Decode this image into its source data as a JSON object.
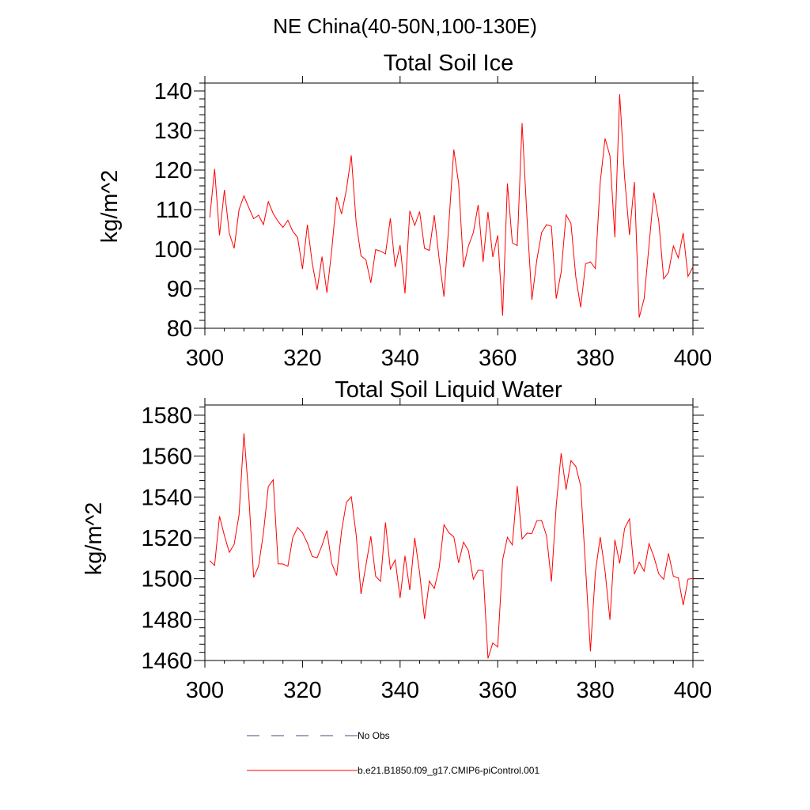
{
  "figure": {
    "title": "NE China(40-50N,100-130E)"
  },
  "chart_data": [
    {
      "type": "line",
      "title": "Total Soil Ice",
      "xlabel": "",
      "ylabel": "kg/m^2",
      "xlim": [
        300,
        400
      ],
      "ylim": [
        80,
        142
      ],
      "xticks": [
        300,
        320,
        340,
        360,
        380,
        400
      ],
      "yticks": [
        80,
        90,
        100,
        110,
        120,
        130,
        140
      ],
      "x_start": 301,
      "series": [
        {
          "name": "b.e21.B1850.f09_g17.CMIP6-piControl.001",
          "color": "#ff0000",
          "values": [
            108,
            120.3,
            103.5,
            115,
            104,
            100.2,
            110,
            113.5,
            110.5,
            107.7,
            108.6,
            106.2,
            112,
            109,
            107,
            105.5,
            107.3,
            104.5,
            103,
            95,
            106.2,
            96.5,
            89.7,
            98.1,
            89,
            99.8,
            113.2,
            108.9,
            115,
            123.7,
            106.6,
            98.3,
            97.3,
            91.5,
            99.9,
            99.5,
            98.8,
            107.8,
            95.5,
            101,
            88.8,
            109.7,
            106,
            109.5,
            100.2,
            99.7,
            108.6,
            97.5,
            88,
            106.6,
            125.2,
            116.7,
            95.4,
            100.8,
            104.2,
            111.2,
            96.8,
            109.4,
            98,
            103.5,
            83.2,
            116.6,
            101.6,
            100.9,
            131.9,
            108,
            87.2,
            97.2,
            104.2,
            106.2,
            105.8,
            87.5,
            94.2,
            108.7,
            106.5,
            93,
            85.3,
            96.3,
            96.8,
            95.1,
            116.9,
            128,
            123.6,
            103,
            139.2,
            118.2,
            103.6,
            117,
            82.7,
            87.5,
            101,
            114.3,
            107.1,
            92.5,
            94.1,
            100.8,
            97.8,
            104.1,
            93.1,
            95.5
          ]
        }
      ]
    },
    {
      "type": "line",
      "title": "Total Soil Liquid Water",
      "xlabel": "",
      "ylabel": "kg/m^2",
      "xlim": [
        300,
        400
      ],
      "ylim": [
        1460,
        1585
      ],
      "xticks": [
        300,
        320,
        340,
        360,
        380,
        400
      ],
      "yticks": [
        1460,
        1480,
        1500,
        1520,
        1540,
        1560,
        1580
      ],
      "x_start": 301,
      "series": [
        {
          "name": "b.e21.B1850.f09_g17.CMIP6-piControl.001",
          "color": "#ff0000",
          "values": [
            1508.8,
            1506.5,
            1530.6,
            1521.1,
            1512.9,
            1516.8,
            1531.2,
            1571.1,
            1540.6,
            1500.6,
            1506.2,
            1522.3,
            1545.1,
            1548.4,
            1507.3,
            1507.2,
            1506.1,
            1520.1,
            1525.1,
            1522.5,
            1517.5,
            1510.9,
            1510.3,
            1516.3,
            1523.6,
            1507.5,
            1501.6,
            1523.3,
            1537.4,
            1540.1,
            1521.4,
            1492.5,
            1506.6,
            1520.8,
            1501.2,
            1498.7,
            1527.5,
            1504.7,
            1509.2,
            1490.6,
            1511.2,
            1494.5,
            1520,
            1502.9,
            1480.3,
            1498.9,
            1495.2,
            1505.4,
            1526.4,
            1522.5,
            1520.5,
            1507.8,
            1517.9,
            1513.7,
            1499.8,
            1504.2,
            1504,
            1461,
            1468.6,
            1466.6,
            1509.2,
            1520.3,
            1516.5,
            1545.4,
            1519.4,
            1522.3,
            1522.1,
            1528.4,
            1528.5,
            1521.1,
            1498.6,
            1535.9,
            1561.4,
            1543.6,
            1557.8,
            1555,
            1545.5,
            1505.5,
            1464.5,
            1502.9,
            1520.4,
            1503.8,
            1479.9,
            1519.1,
            1507.5,
            1524.6,
            1529.3,
            1502.2,
            1508.1,
            1503.7,
            1517.2,
            1510.8,
            1502.4,
            1499.7,
            1512.4,
            1501.2,
            1500.4,
            1487.1,
            1499.8,
            1500.2
          ]
        }
      ]
    }
  ],
  "legend": [
    {
      "label": "No Obs",
      "style": "dashed",
      "color": "#4a4a8a"
    },
    {
      "label": "b.e21.B1850.f09_g17.CMIP6-piControl.001",
      "style": "solid",
      "color": "#ff0000"
    }
  ]
}
